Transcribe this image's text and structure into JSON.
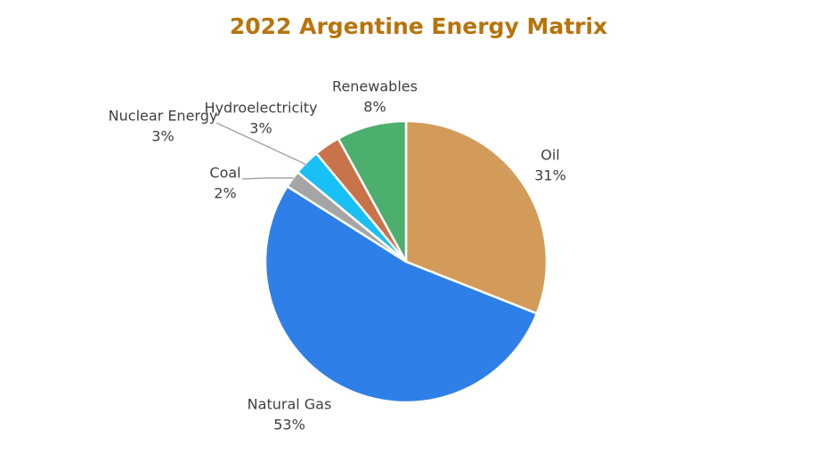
{
  "chart_data": {
    "type": "pie",
    "title": "2022 Argentine Energy Matrix",
    "categories": [
      "Oil",
      "Natural Gas",
      "Coal",
      "Nuclear Energy",
      "Hydroelectricity",
      "Renewables"
    ],
    "values": [
      31,
      53,
      2,
      3,
      3,
      8
    ],
    "value_labels": [
      "31%",
      "53%",
      "2%",
      "3%",
      "3%",
      "8%"
    ],
    "colors": [
      "#d39b5a",
      "#2f7fe8",
      "#a5a5a5",
      "#18c0f5",
      "#c8734a",
      "#4caf6e"
    ]
  }
}
